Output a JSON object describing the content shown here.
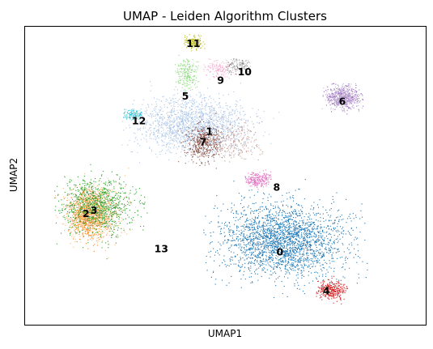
{
  "chart_data": {
    "type": "scatter",
    "title": "UMAP - Leiden Algorithm Clusters",
    "xlabel": "UMAP1",
    "ylabel": "UMAP2",
    "xlim": [
      -6.5,
      18.5
    ],
    "ylim": [
      -7,
      10
    ],
    "axes_ticks": false,
    "grid": false,
    "legend": "none (cluster ids printed on map)",
    "clusters": [
      {
        "id": "0",
        "color": "#1f77b4",
        "center": [
          9.6,
          -2.2
        ],
        "spread": [
          3.6,
          1.9
        ],
        "weight": 16,
        "extent": [
          [
            4.5,
            -6.2
          ],
          [
            15.0,
            1.8
          ]
        ]
      },
      {
        "id": "1",
        "color": "#aec7e8",
        "center": [
          4.0,
          4.4
        ],
        "spread": [
          3.2,
          1.4
        ],
        "weight": 11,
        "extent": [
          [
            -0.5,
            2.2
          ],
          [
            9.5,
            8.0
          ]
        ]
      },
      {
        "id": "2",
        "color": "#ff7f0e",
        "center": [
          -2.6,
          -0.7
        ],
        "spread": [
          1.0,
          1.2
        ],
        "weight": 4,
        "extent": [
          [
            -4.2,
            -3.0
          ],
          [
            -1.0,
            2.0
          ]
        ]
      },
      {
        "id": "3",
        "color": "#ffbb78",
        "center": [
          -2.2,
          -0.6
        ],
        "spread": [
          1.5,
          1.4
        ],
        "weight": 5,
        "extent": [
          [
            -5.0,
            -3.4
          ],
          [
            0.5,
            2.0
          ]
        ]
      },
      {
        "id": "4",
        "color": "#2ca02c",
        "center": [
          -2.0,
          -0.2
        ],
        "spread": [
          2.0,
          1.5
        ],
        "weight": 6,
        "extent": [
          [
            -4.8,
            -3.6
          ],
          [
            1.2,
            2.4
          ]
        ]
      },
      {
        "id": "5",
        "color": "#d62728",
        "center": [
          12.6,
          -5.0
        ],
        "spread": [
          0.9,
          0.5
        ],
        "weight": 2,
        "extent": [
          [
            11.6,
            -5.8
          ],
          [
            13.6,
            -4.2
          ]
        ]
      },
      {
        "id": "6",
        "color": "#98df8a",
        "center": [
          3.6,
          7.4
        ],
        "spread": [
          0.7,
          0.9
        ],
        "weight": 1.5,
        "extent": [
          [
            2.8,
            6.2
          ],
          [
            4.4,
            8.4
          ]
        ]
      },
      {
        "id": "7",
        "color": "#9467bd",
        "center": [
          13.3,
          6.0
        ],
        "spread": [
          1.0,
          0.6
        ],
        "weight": 2,
        "extent": [
          [
            12.0,
            5.0
          ],
          [
            14.8,
            7.0
          ]
        ]
      },
      {
        "id": "8",
        "color": "#c5b0d5",
        "center": [
          13.3,
          6.0
        ],
        "spread": [
          1.0,
          0.6
        ],
        "weight": 2,
        "extent": [
          [
            12.0,
            5.0
          ],
          [
            14.8,
            7.0
          ]
        ]
      },
      {
        "id": "9",
        "color": "#8c564b",
        "center": [
          4.6,
          3.4
        ],
        "spread": [
          1.0,
          0.9
        ],
        "weight": 3,
        "extent": [
          [
            3.0,
            1.6
          ],
          [
            6.8,
            5.2
          ]
        ]
      },
      {
        "id": "10",
        "color": "#c49c94",
        "center": [
          6.5,
          3.6
        ],
        "spread": [
          1.5,
          1.0
        ],
        "weight": 1.5,
        "extent": [
          [
            4.8,
            2.2
          ],
          [
            8.4,
            5.0
          ]
        ]
      },
      {
        "id": "11",
        "color": "#e377c2",
        "center": [
          8.0,
          1.3
        ],
        "spread": [
          0.8,
          0.4
        ],
        "weight": 1.5,
        "extent": [
          [
            7.2,
            0.7
          ],
          [
            9.0,
            1.9
          ]
        ]
      },
      {
        "id": "12",
        "color": "#f7b6d2",
        "center": [
          5.6,
          7.6
        ],
        "spread": [
          1.0,
          0.5
        ],
        "weight": 1,
        "extent": [
          [
            4.6,
            7.0
          ],
          [
            6.8,
            8.2
          ]
        ]
      },
      {
        "id": "13",
        "color": "#7f7f7f",
        "center": [
          6.8,
          7.8
        ],
        "spread": [
          0.8,
          0.4
        ],
        "weight": 0.5,
        "extent": [
          [
            6.0,
            7.3
          ],
          [
            7.6,
            8.3
          ]
        ]
      },
      {
        "id": "14",
        "color": "#c7c7c7",
        "center": [
          6.8,
          7.8
        ],
        "spread": [
          0.8,
          0.4
        ],
        "weight": 0.5,
        "extent": [
          [
            6.0,
            7.3
          ],
          [
            7.6,
            8.3
          ]
        ]
      },
      {
        "id": "15",
        "color": "#bcbd22",
        "center": [
          4.0,
          9.1
        ],
        "spread": [
          0.6,
          0.4
        ],
        "weight": 1,
        "extent": [
          [
            3.4,
            8.6
          ],
          [
            4.8,
            9.6
          ]
        ]
      },
      {
        "id": "16",
        "color": "#17becf",
        "center": [
          0.2,
          5.0
        ],
        "spread": [
          0.6,
          0.25
        ],
        "weight": 0.6,
        "extent": [
          [
            -0.4,
            4.6
          ],
          [
            0.8,
            5.4
          ]
        ]
      },
      {
        "id": "17",
        "color": "#9edae5",
        "center": [
          0.2,
          5.0
        ],
        "spread": [
          0.6,
          0.25
        ],
        "weight": 0.4,
        "extent": [
          [
            -0.4,
            4.6
          ],
          [
            0.8,
            5.4
          ]
        ]
      }
    ],
    "labels": [
      {
        "text": "0",
        "x": 9.4,
        "y": -2.9
      },
      {
        "text": "1",
        "x": 5.0,
        "y": 4.0
      },
      {
        "text": "2",
        "x": -2.7,
        "y": -0.7
      },
      {
        "text": "3",
        "x": -2.2,
        "y": -0.5
      },
      {
        "text": "4",
        "x": 12.3,
        "y": -5.1
      },
      {
        "text": "5",
        "x": 3.5,
        "y": 6.0
      },
      {
        "text": "6",
        "x": 13.3,
        "y": 5.7
      },
      {
        "text": "7",
        "x": 4.6,
        "y": 3.4
      },
      {
        "text": "8",
        "x": 9.2,
        "y": 0.8
      },
      {
        "text": "9",
        "x": 5.7,
        "y": 6.9
      },
      {
        "text": "10",
        "x": 7.2,
        "y": 7.4
      },
      {
        "text": "11",
        "x": 4.0,
        "y": 9.0
      },
      {
        "text": "12",
        "x": 0.6,
        "y": 4.6
      },
      {
        "text": "13",
        "x": 2.0,
        "y": -2.7
      }
    ]
  }
}
